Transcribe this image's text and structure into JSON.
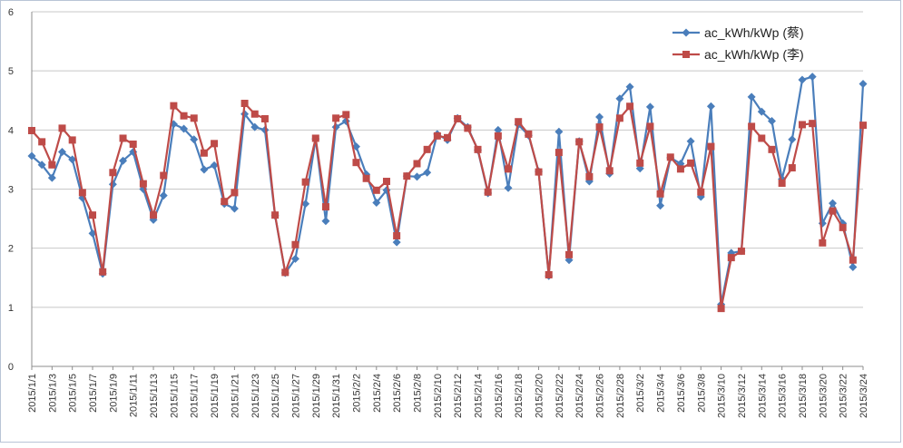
{
  "chart_data": {
    "type": "line",
    "ylim": [
      0,
      6
    ],
    "y_ticks": [
      0,
      1,
      2,
      3,
      4,
      5,
      6
    ],
    "grid": "horizontal",
    "legend_position": "top-right",
    "x_tick_labels": [
      "2015/1/1",
      "2015/1/3",
      "2015/1/5",
      "2015/1/7",
      "2015/1/9",
      "2015/1/11",
      "2015/1/13",
      "2015/1/15",
      "2015/1/17",
      "2015/1/19",
      "2015/1/21",
      "2015/1/23",
      "2015/1/25",
      "2015/1/27",
      "2015/1/29",
      "2015/1/31",
      "2015/2/2",
      "2015/2/4",
      "2015/2/6",
      "2015/2/8",
      "2015/2/10",
      "2015/2/12",
      "2015/2/14",
      "2015/2/16",
      "2015/2/18",
      "2015/2/20",
      "2015/2/22",
      "2015/2/24",
      "2015/2/26",
      "2015/2/28",
      "2015/3/2",
      "2015/3/4",
      "2015/3/6",
      "2015/3/8",
      "2015/3/10",
      "2015/3/12",
      "2015/3/14",
      "2015/3/16",
      "2015/3/18",
      "2015/3/20",
      "2015/3/22",
      "2015/3/24"
    ],
    "series": [
      {
        "name": "ac_kWh/kWp (蔡)",
        "color": "#4a7ebb",
        "marker": "diamond",
        "values": [
          3.56,
          3.41,
          3.19,
          3.63,
          3.5,
          2.85,
          2.25,
          1.57,
          3.08,
          3.48,
          3.63,
          3.0,
          2.48,
          2.89,
          4.1,
          4.02,
          3.84,
          3.33,
          3.4,
          2.75,
          2.67,
          4.27,
          4.05,
          4.0,
          2.55,
          1.58,
          1.82,
          2.75,
          3.85,
          2.46,
          4.05,
          4.15,
          3.72,
          3.25,
          2.77,
          2.98,
          2.1,
          3.22,
          3.21,
          3.28,
          3.93,
          3.83,
          4.2,
          4.05,
          3.66,
          2.93,
          4.0,
          3.02,
          4.09,
          3.91,
          3.3,
          1.53,
          3.97,
          1.8,
          3.81,
          3.13,
          4.22,
          3.26,
          4.53,
          4.73,
          3.35,
          4.39,
          2.72,
          3.53,
          3.43,
          3.81,
          2.87,
          4.4,
          1.05,
          1.92,
          1.95,
          4.56,
          4.31,
          4.15,
          3.17,
          3.84,
          4.85,
          4.9,
          2.42,
          2.76,
          2.42,
          1.68,
          4.78
        ]
      },
      {
        "name": "ac_kWh/kWp (李)",
        "color": "#be4b48",
        "marker": "square",
        "values": [
          3.99,
          3.8,
          3.41,
          4.03,
          3.83,
          2.94,
          2.56,
          1.6,
          3.28,
          3.86,
          3.76,
          3.09,
          2.56,
          3.23,
          4.41,
          4.24,
          4.2,
          3.61,
          3.77,
          2.79,
          2.94,
          4.45,
          4.27,
          4.19,
          2.56,
          1.59,
          2.06,
          3.12,
          3.86,
          2.7,
          4.2,
          4.26,
          3.45,
          3.18,
          2.98,
          3.13,
          2.21,
          3.22,
          3.43,
          3.67,
          3.9,
          3.87,
          4.19,
          4.03,
          3.67,
          2.95,
          3.9,
          3.34,
          4.14,
          3.93,
          3.29,
          1.55,
          3.62,
          1.89,
          3.8,
          3.21,
          4.05,
          3.31,
          4.2,
          4.4,
          3.44,
          4.06,
          2.92,
          3.54,
          3.34,
          3.44,
          2.95,
          3.72,
          0.98,
          1.84,
          1.95,
          4.06,
          3.86,
          3.67,
          3.1,
          3.36,
          4.09,
          4.11,
          2.09,
          2.63,
          2.35,
          1.8,
          4.08
        ]
      }
    ]
  }
}
